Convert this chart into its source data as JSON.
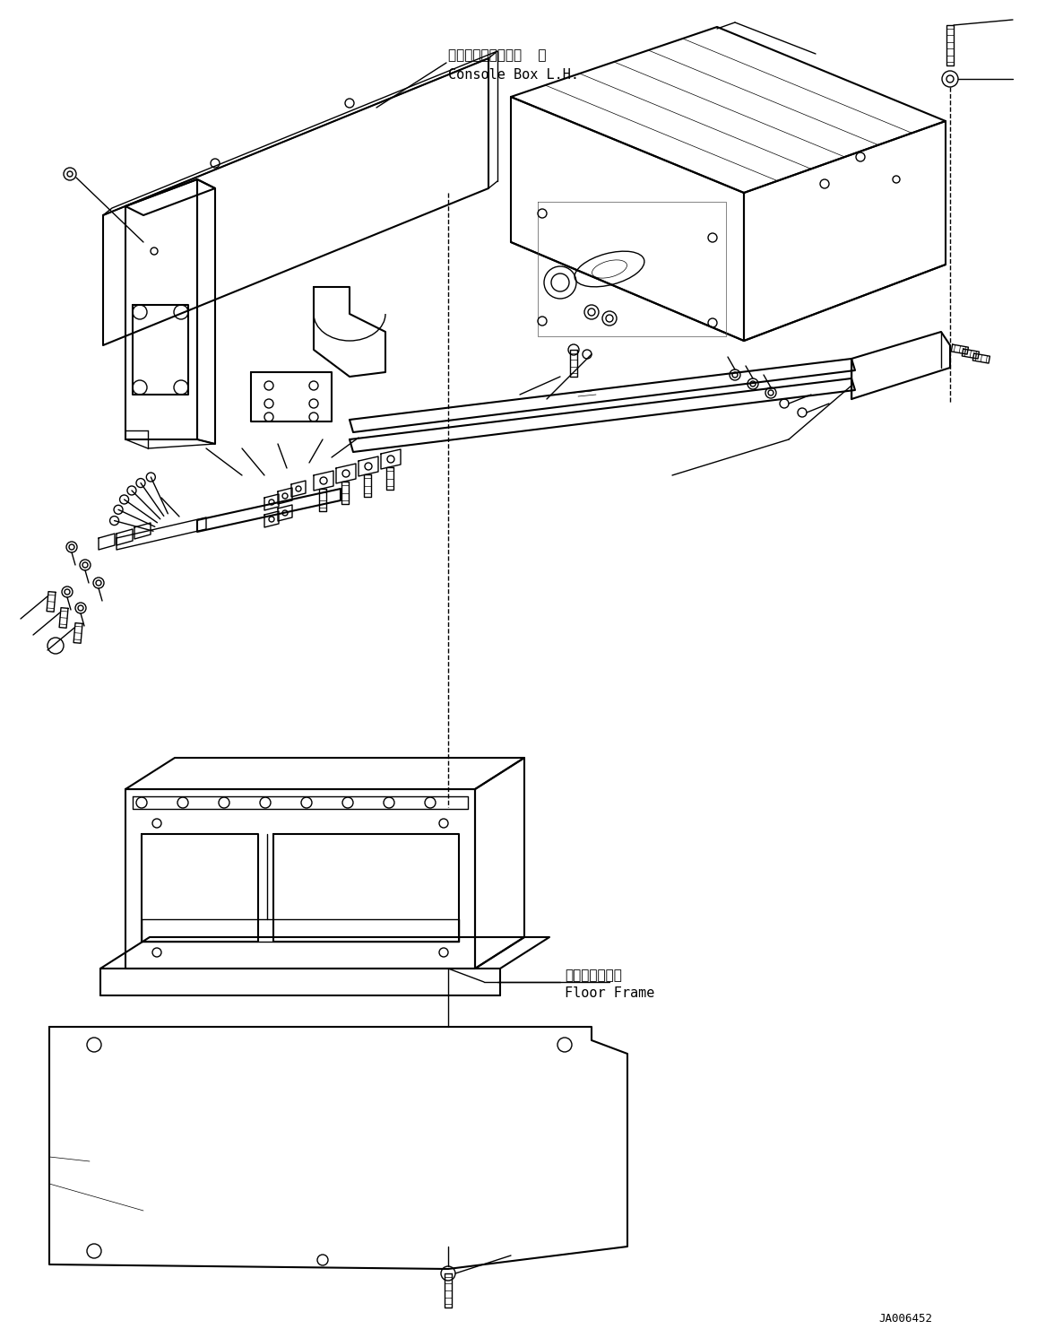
{
  "background_color": "#ffffff",
  "line_color": "#000000",
  "fig_width": 11.57,
  "fig_height": 14.92,
  "dpi": 100,
  "label_console_jp": "コンソールボックス  左",
  "label_console_en": "Console Box L.H.",
  "label_floor_jp": "フロアフレーム",
  "label_floor_en": "Floor Frame",
  "watermark": "JA006452",
  "font_size_label": 11,
  "font_size_watermark": 9
}
